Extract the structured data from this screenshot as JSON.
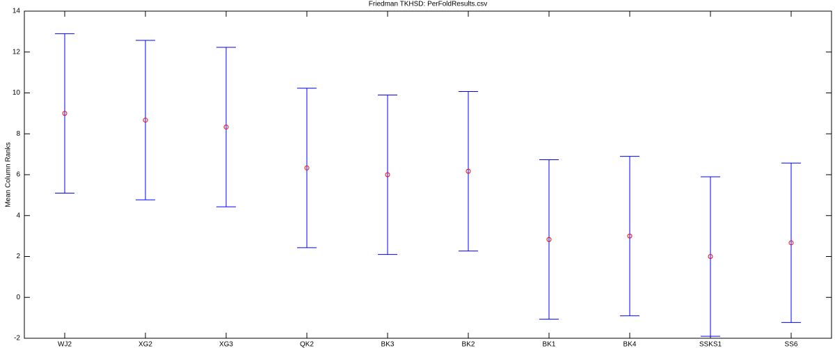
{
  "chart_data": {
    "type": "errorbar",
    "title": "Friedman TKHSD: PerFoldResults.csv",
    "y_label": "Mean Column Ranks",
    "categories": [
      "WJ2",
      "XG2",
      "XG3",
      "QK2",
      "BK3",
      "BK2",
      "BK1",
      "BK4",
      "SSKS1",
      "SS6"
    ],
    "values": [
      9.0,
      8.67,
      8.33,
      6.33,
      6.0,
      6.17,
      2.83,
      3.0,
      2.0,
      2.67
    ],
    "errors": [
      3.9,
      3.9,
      3.9,
      3.9,
      3.9,
      3.9,
      3.9,
      3.9,
      3.9,
      3.9
    ],
    "bar_color": "#0000ff",
    "marker_color": "#ff0000",
    "ylim": [
      -2,
      14
    ],
    "yticks": [
      -2,
      0,
      2,
      4,
      6,
      8,
      10,
      12,
      14
    ],
    "grid": false
  }
}
